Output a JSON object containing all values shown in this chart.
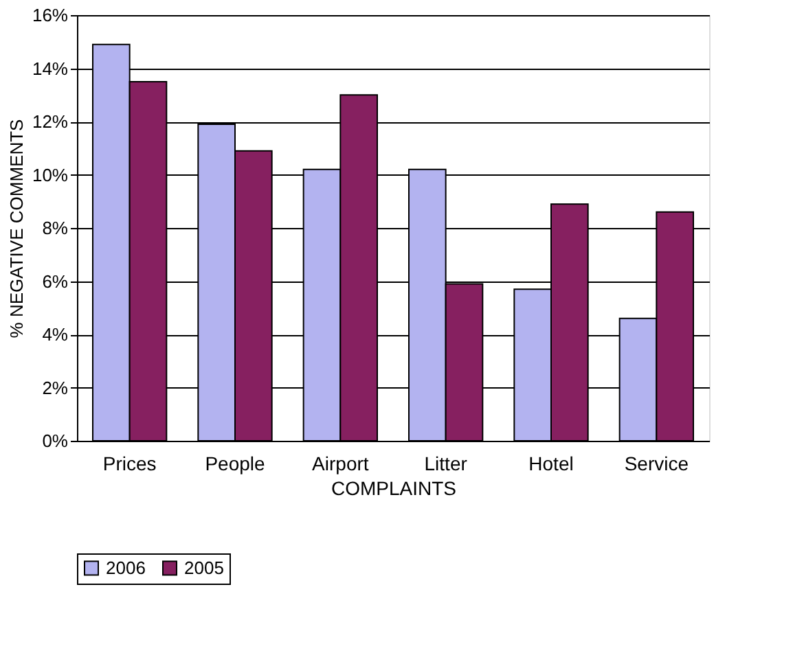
{
  "chart_data": {
    "type": "bar",
    "xlabel": "COMPLAINTS",
    "ylabel": "% NEGATIVE COMMENTS",
    "categories": [
      "Prices",
      "People",
      "Airport",
      "Litter",
      "Hotel",
      "Service"
    ],
    "series": [
      {
        "name": "2006",
        "color": "#b3b3f0",
        "values": [
          14.9,
          11.9,
          10.2,
          10.2,
          5.7,
          4.6
        ]
      },
      {
        "name": "2005",
        "color": "#862060",
        "values": [
          13.5,
          10.9,
          13.0,
          5.9,
          8.9,
          8.6
        ]
      }
    ],
    "ylim": [
      0,
      16
    ],
    "yticks": [
      {
        "value": 0,
        "label": "0%"
      },
      {
        "value": 2,
        "label": "2%"
      },
      {
        "value": 4,
        "label": "4%"
      },
      {
        "value": 6,
        "label": "6%"
      },
      {
        "value": 8,
        "label": "8%"
      },
      {
        "value": 10,
        "label": "10%"
      },
      {
        "value": 12,
        "label": "12%"
      },
      {
        "value": 14,
        "label": "14%"
      },
      {
        "value": 16,
        "label": "16%"
      }
    ],
    "grid": "y",
    "legend": "bottom"
  }
}
